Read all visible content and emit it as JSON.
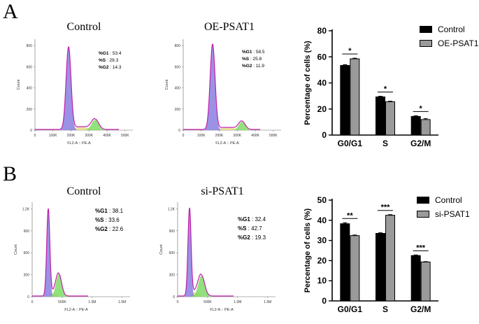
{
  "colors": {
    "ctrl": "#000000",
    "treat": "#9a9a9a",
    "g1": "#8a7fe0",
    "s": "#e6d98a",
    "g2": "#7fdc66",
    "curve": "#c21fa7"
  },
  "panelA": {
    "letter": "A",
    "flow": [
      {
        "title": "Control",
        "stats": [
          {
            "k": "%G1",
            "v": ": 53.4"
          },
          {
            "k": "%S",
            "v": ": 29.3"
          },
          {
            "k": "%G2",
            "v": ": 14.3"
          }
        ],
        "yticks": [
          "0",
          "200",
          "400",
          "600",
          "800"
        ],
        "xticks": [
          "0",
          "100K",
          "200K",
          "300K",
          "400K",
          "500K"
        ],
        "xlabel": "FL2-A :: PE-A",
        "ylabel": "Count"
      },
      {
        "title": "OE-PSAT1",
        "stats": [
          {
            "k": "%G1",
            "v": ": 58.5"
          },
          {
            "k": "%S",
            "v": ": 25.8"
          },
          {
            "k": "%G2",
            "v": ": 11.9"
          }
        ],
        "yticks": [
          "0",
          "200",
          "400",
          "600",
          "800"
        ],
        "xticks": [
          "0",
          "100K",
          "200K",
          "300K",
          "400K",
          "500K"
        ],
        "xlabel": "FL2-A :: PE-A",
        "ylabel": "Count"
      }
    ]
  },
  "panelB": {
    "letter": "B",
    "flow": [
      {
        "title": "Control",
        "stats": [
          {
            "k": "%G1",
            "v": ": 38.1"
          },
          {
            "k": "%S",
            "v": ": 33.6"
          },
          {
            "k": "%G2",
            "v": ": 22.6"
          }
        ],
        "yticks": [
          "0",
          "300",
          "600",
          "900",
          "1.2K"
        ],
        "xticks": [
          "0",
          "500K",
          "1.0M",
          "1.5M"
        ],
        "xlabel": "FL2-A :: PE-A",
        "ylabel": "Count"
      },
      {
        "title": "si-PSAT1",
        "stats": [
          {
            "k": "%G1",
            "v": ": 32.4"
          },
          {
            "k": "%S",
            "v": ": 42.7"
          },
          {
            "k": "%G2",
            "v": ": 19.3"
          }
        ],
        "yticks": [
          "0",
          "300",
          "600",
          "900",
          "1.2K"
        ],
        "xticks": [
          "0",
          "500K",
          "1.0M",
          "1.5M"
        ],
        "xlabel": "FL2-A :: PE-A",
        "ylabel": "Count"
      }
    ]
  },
  "chart_data": [
    {
      "type": "bar",
      "categories": [
        "G0/G1",
        "S",
        "G2/M"
      ],
      "series": [
        {
          "name": "Control",
          "values": [
            53.4,
            29.3,
            14.3
          ],
          "errors": [
            0.6,
            0.5,
            0.5
          ]
        },
        {
          "name": "OE-PSAT1",
          "values": [
            58.5,
            25.6,
            11.9
          ],
          "errors": [
            0.5,
            0.4,
            0.7
          ]
        }
      ],
      "significance": [
        "*",
        "*",
        "*"
      ],
      "ylabel": "Percentage of cells (%)",
      "ylim": [
        0,
        80
      ],
      "yticks": [
        0,
        20,
        40,
        60,
        80
      ],
      "legend": "top-right"
    },
    {
      "type": "bar",
      "categories": [
        "G0/G1",
        "S",
        "G2/M"
      ],
      "series": [
        {
          "name": "Control",
          "values": [
            38.3,
            33.5,
            22.5
          ],
          "errors": [
            0.5,
            0.3,
            0.3
          ]
        },
        {
          "name": "si-PSAT1",
          "values": [
            32.4,
            42.5,
            19.3
          ],
          "errors": [
            0.3,
            0.3,
            0.2
          ]
        }
      ],
      "significance": [
        "**",
        "***",
        "***"
      ],
      "ylabel": "Percentage of cells (%)",
      "ylim": [
        0,
        50
      ],
      "yticks": [
        0,
        10,
        20,
        30,
        40,
        50
      ],
      "legend": "top-right"
    }
  ]
}
